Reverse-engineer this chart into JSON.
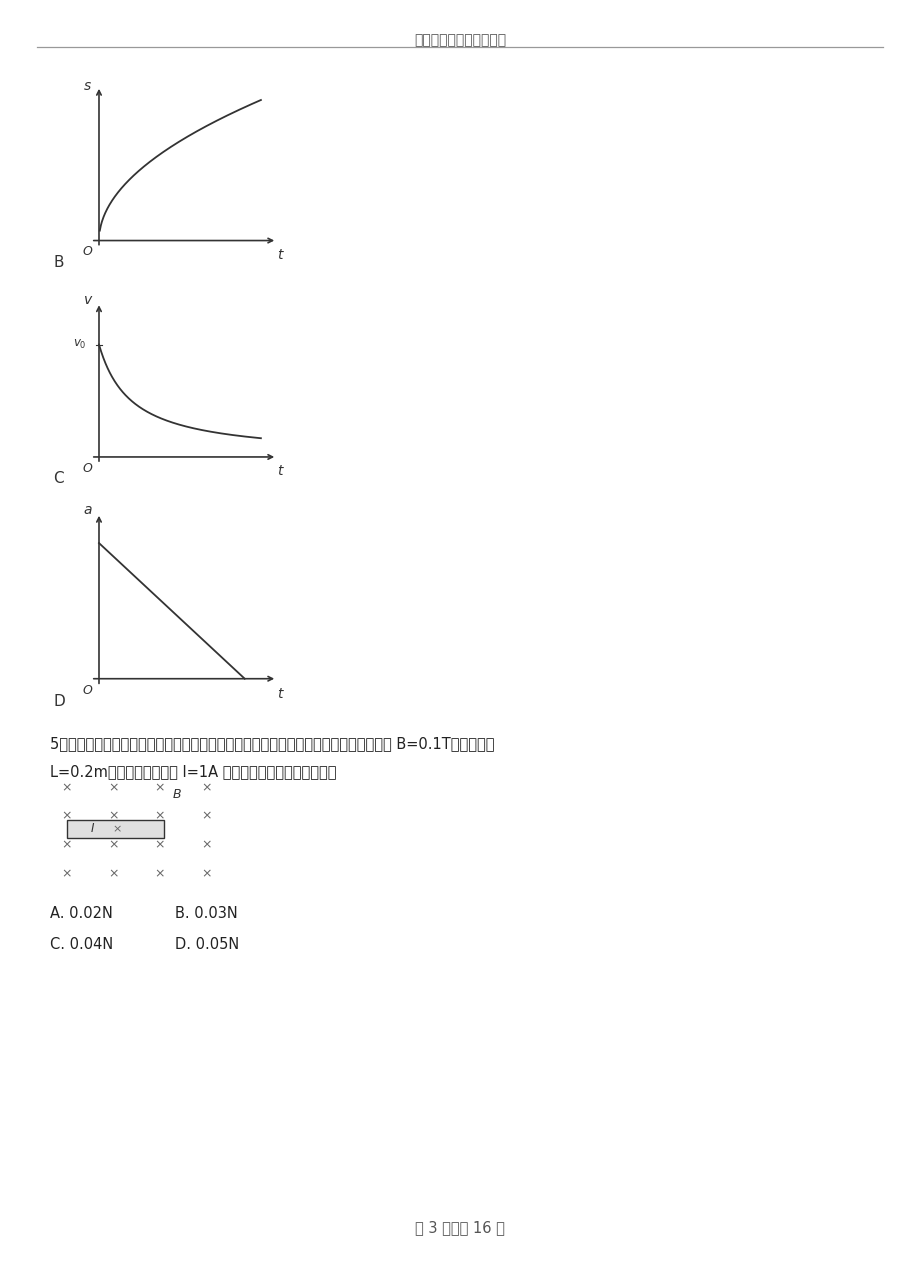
{
  "header_text": "高考模式考试试卷解析版",
  "bg_color": "#ffffff",
  "line_color": "#333333",
  "q5_line1": "5．如图所示，一通电直导线位于匀强磁场中，导线与磁场方向垂直，磁场的磁感应强度 B=0.1T，导线长度",
  "q5_line2": "L=0.2m，当导线中的电流 I=1A 时，该导线所受安培力的大小",
  "ans1": "A. 0.02N",
  "ans2": "B. 0.03N",
  "ans3": "C. 0.04N",
  "ans4": "D. 0.05N",
  "footer_text": "第 3 页，共 16 页",
  "graph_B_label_x": "t",
  "graph_B_label_y": "s",
  "graph_C_label_x": "t",
  "graph_C_label_y": "v",
  "graph_C_label_v0": "v0",
  "graph_D_label_x": "t",
  "graph_D_label_y": "a"
}
